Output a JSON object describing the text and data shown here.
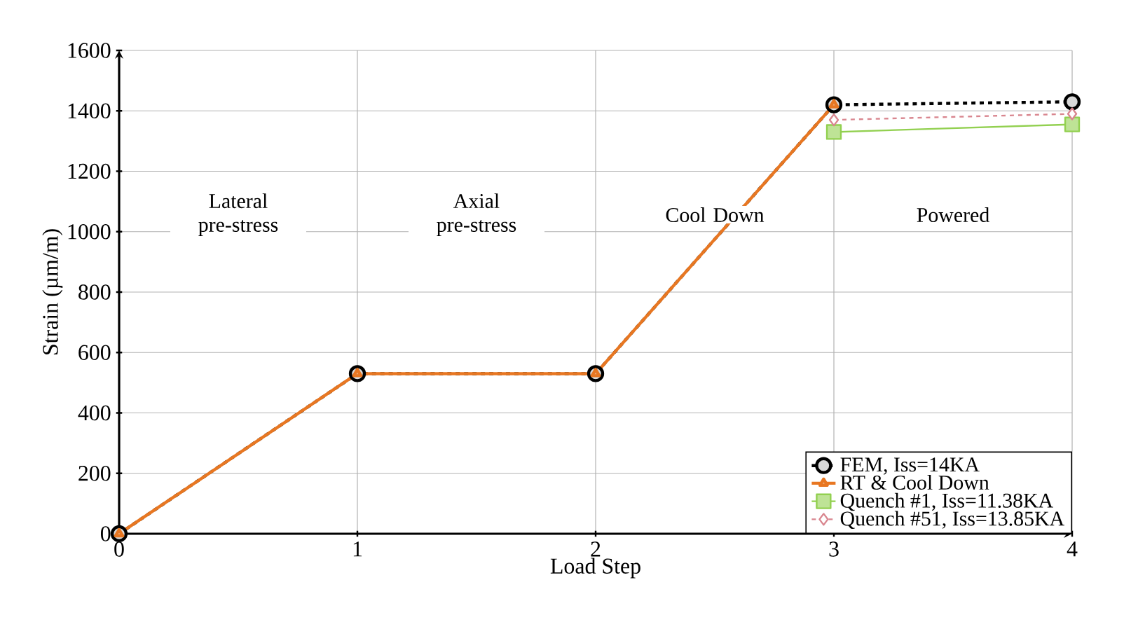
{
  "chart_data": {
    "type": "line",
    "xlabel": "Load Step",
    "ylabel": "Strain (µm/m)",
    "x": [
      0,
      1,
      2,
      3,
      4
    ],
    "xlim": [
      0,
      4
    ],
    "xticks": [
      0,
      1,
      2,
      3,
      4
    ],
    "ylim": [
      0,
      1600
    ],
    "yticks": [
      0,
      200,
      400,
      600,
      800,
      1000,
      1200,
      1400,
      1600
    ],
    "grid": true,
    "legend": "bottom right",
    "series": [
      {
        "name": "FEM, Iss=14KA",
        "color": "#000000",
        "values": [
          0,
          530,
          530,
          1420,
          1430
        ],
        "marker": "circle",
        "line_style": "dashed"
      },
      {
        "name": "RT & Cool Down",
        "color": "#e87722",
        "values": [
          0,
          530,
          530,
          1420,
          null
        ],
        "marker": "triangle",
        "line_style": "solid"
      },
      {
        "name": "Quench   #1, Iss=11.38KA",
        "color": "#92d050",
        "values": [
          null,
          null,
          null,
          1330,
          1355
        ],
        "marker": "square",
        "line_style": "solid"
      },
      {
        "name": "Quench #51, Iss=13.85KA",
        "color": "#d9868f",
        "values": [
          null,
          null,
          null,
          1370,
          1390
        ],
        "marker": "diamond",
        "line_style": "dashed"
      }
    ],
    "annotations": [
      "Lateral pre-stress",
      "Axial pre-stress",
      "Cool Down",
      "Powered"
    ]
  }
}
